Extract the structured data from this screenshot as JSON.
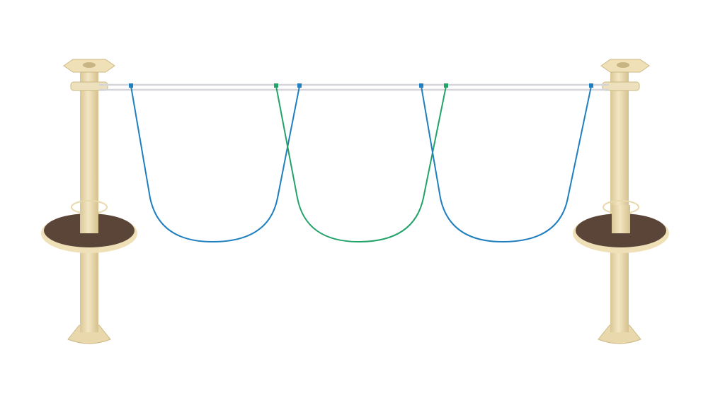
{
  "scene": {
    "subject": "rope-traverse-play-equipment",
    "colors": {
      "background": "#ffffff",
      "post": "#efe0b8",
      "post_shadow": "#d8c596",
      "platform_top": "#5a4538",
      "platform_rim": "#efe0b8",
      "rail": "#d9d9dc",
      "rope_blue": "#1f7fbf",
      "rope_green": "#23a36a"
    }
  }
}
